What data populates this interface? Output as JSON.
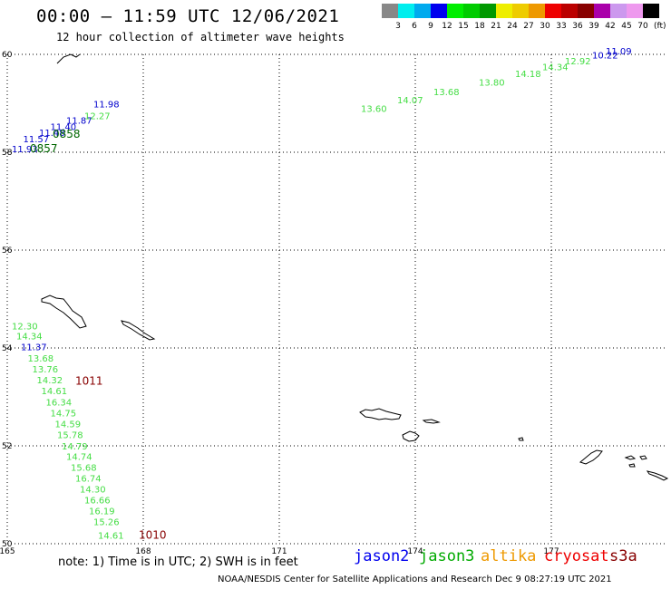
{
  "header": {
    "title": "00:00 — 11:59 UTC 12/06/2021",
    "subtitle": "12 hour collection of altimeter wave heights"
  },
  "legend": {
    "colors": [
      "#888888",
      "#00eeee",
      "#00aaee",
      "#0000ee",
      "#00ee00",
      "#00cc00",
      "#009900",
      "#eeee00",
      "#eecc00",
      "#ee9900",
      "#ee0000",
      "#bb0000",
      "#880000",
      "#aa00aa",
      "#cc99ee",
      "#ee99ee",
      "#000000"
    ],
    "labels": [
      "3",
      "6",
      "9",
      "12",
      "15",
      "18",
      "21",
      "24",
      "27",
      "30",
      "33",
      "36",
      "39",
      "42",
      "45",
      "70"
    ],
    "unit": "(ft)"
  },
  "map": {
    "lat_labels": [
      "60",
      "58",
      "56",
      "54",
      "52",
      "50"
    ],
    "lon_labels": [
      "165",
      "168",
      "171",
      "174",
      "177"
    ]
  },
  "tracks": [
    {
      "name": "jason2",
      "color": "#0000cc",
      "items": [
        {
          "text": "11.09",
          "lon": 178.2,
          "lat": 60.0
        },
        {
          "text": "10.22",
          "lon": 177.9,
          "lat": 59.92
        },
        {
          "text": "11.98",
          "lon": 166.9,
          "lat": 58.92
        },
        {
          "text": "11.87",
          "lon": 166.3,
          "lat": 58.58
        },
        {
          "text": "11.40",
          "lon": 165.95,
          "lat": 58.45
        },
        {
          "text": "11.48",
          "lon": 165.7,
          "lat": 58.33
        },
        {
          "text": "11.57",
          "lon": 165.35,
          "lat": 58.2
        },
        {
          "text": "11.93",
          "lon": 165.1,
          "lat": 58.0
        },
        {
          "text": "11.37",
          "lon": 165.3,
          "lat": 53.95
        }
      ]
    },
    {
      "name": "jason3",
      "color": "#44dd44",
      "items": [
        {
          "text": "12.92",
          "lon": 177.3,
          "lat": 59.8
        },
        {
          "text": "14.34",
          "lon": 176.8,
          "lat": 59.68
        },
        {
          "text": "14.18",
          "lon": 176.2,
          "lat": 59.54
        },
        {
          "text": "13.80",
          "lon": 175.4,
          "lat": 59.36
        },
        {
          "text": "13.68",
          "lon": 174.4,
          "lat": 59.17
        },
        {
          "text": "14.07",
          "lon": 173.6,
          "lat": 59.0
        },
        {
          "text": "13.60",
          "lon": 172.8,
          "lat": 58.82
        },
        {
          "text": "12.27",
          "lon": 166.7,
          "lat": 58.68
        },
        {
          "text": "12.30",
          "lon": 165.1,
          "lat": 54.38
        },
        {
          "text": "14.34",
          "lon": 165.2,
          "lat": 54.18
        },
        {
          "text": "13.68",
          "lon": 165.45,
          "lat": 53.72
        },
        {
          "text": "13.76",
          "lon": 165.55,
          "lat": 53.5
        },
        {
          "text": "14.32",
          "lon": 165.65,
          "lat": 53.28
        },
        {
          "text": "14.61",
          "lon": 165.75,
          "lat": 53.06
        },
        {
          "text": "16.34",
          "lon": 165.85,
          "lat": 52.82
        },
        {
          "text": "14.75",
          "lon": 165.95,
          "lat": 52.6
        },
        {
          "text": "14.59",
          "lon": 166.05,
          "lat": 52.38
        },
        {
          "text": "15.78",
          "lon": 166.1,
          "lat": 52.16
        },
        {
          "text": "14.79",
          "lon": 166.2,
          "lat": 51.93
        },
        {
          "text": "14.74",
          "lon": 166.3,
          "lat": 51.71
        },
        {
          "text": "15.68",
          "lon": 166.4,
          "lat": 51.49
        },
        {
          "text": "16.74",
          "lon": 166.5,
          "lat": 51.27
        },
        {
          "text": "14.30",
          "lon": 166.6,
          "lat": 51.05
        },
        {
          "text": "16.66",
          "lon": 166.7,
          "lat": 50.82
        },
        {
          "text": "16.19",
          "lon": 166.8,
          "lat": 50.6
        },
        {
          "text": "15.26",
          "lon": 166.9,
          "lat": 50.38
        },
        {
          "text": "14.61",
          "lon": 167.0,
          "lat": 50.1
        }
      ]
    },
    {
      "name": "cryosat",
      "color": "#880000",
      "items": [
        {
          "text": "1011",
          "lon": 166.5,
          "lat": 53.25
        },
        {
          "text": "1010",
          "lon": 167.9,
          "lat": 50.1
        }
      ]
    },
    {
      "name": "time",
      "color": "#006600",
      "items": [
        {
          "text": "0858",
          "lon": 166.0,
          "lat": 58.3
        },
        {
          "text": "0857",
          "lon": 165.5,
          "lat": 58.0
        }
      ]
    }
  ],
  "note": "note: 1) Time is in UTC; 2) SWH is in feet",
  "satellites": [
    {
      "name": "jason2",
      "color": "#0000ee"
    },
    {
      "name": "jason3",
      "color": "#00aa00"
    },
    {
      "name": "altika",
      "color": "#ee9900"
    },
    {
      "name": "cryosat",
      "color": "#ee0000"
    },
    {
      "name": "s3a",
      "color": "#880000"
    }
  ],
  "credit": "NOAA/NESDIS Center for Satellite Applications and Research   Dec  9 08:27:19 UTC 2021"
}
